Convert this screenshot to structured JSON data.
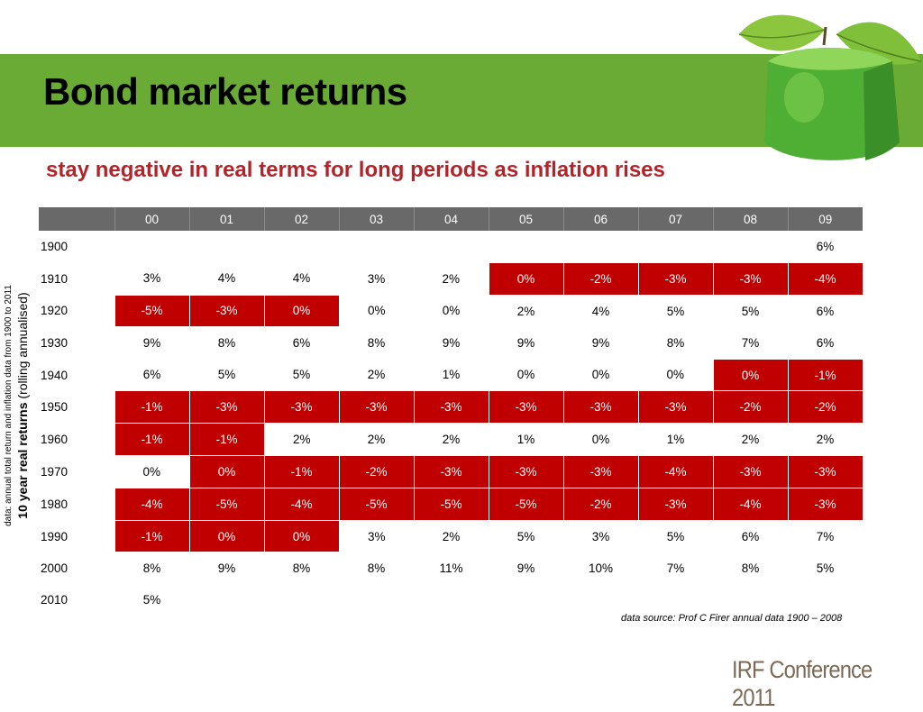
{
  "slide": {
    "title": "Bond market returns",
    "subtitle": "stay negative in real terms for long periods as inflation rises"
  },
  "side_label": {
    "note": "data: annual total return and inflation data from 1900 to 2011",
    "main_bold": "10  year real returns",
    "main_rest": "(rolling annualised)"
  },
  "table": {
    "columns": [
      "",
      "00",
      "01",
      "02",
      "03",
      "04",
      "05",
      "06",
      "07",
      "08",
      "09"
    ],
    "rows": [
      {
        "decade": "1900",
        "cells": [
          "",
          "",
          "",
          "",
          "",
          "",
          "",
          "",
          "",
          "6%"
        ]
      },
      {
        "decade": "1910",
        "cells": [
          "3%",
          "4%",
          "4%",
          "3%",
          "2%",
          "0%",
          "-2%",
          "-3%",
          "-3%",
          "-4%"
        ]
      },
      {
        "decade": "1920",
        "cells": [
          "-5%",
          "-3%",
          "0%",
          "0%",
          "0%",
          "2%",
          "4%",
          "5%",
          "5%",
          "6%"
        ]
      },
      {
        "decade": "1930",
        "cells": [
          "9%",
          "8%",
          "6%",
          "8%",
          "9%",
          "9%",
          "9%",
          "8%",
          "7%",
          "6%"
        ]
      },
      {
        "decade": "1940",
        "cells": [
          "6%",
          "5%",
          "5%",
          "2%",
          "1%",
          "0%",
          "0%",
          "0%",
          "0%",
          "-1%"
        ]
      },
      {
        "decade": "1950",
        "cells": [
          "-1%",
          "-3%",
          "-3%",
          "-3%",
          "-3%",
          "-3%",
          "-3%",
          "-3%",
          "-2%",
          "-2%"
        ]
      },
      {
        "decade": "1960",
        "cells": [
          "-1%",
          "-1%",
          "2%",
          "2%",
          "2%",
          "1%",
          "0%",
          "1%",
          "2%",
          "2%"
        ]
      },
      {
        "decade": "1970",
        "cells": [
          "0%",
          "0%",
          "-1%",
          "-2%",
          "-3%",
          "-3%",
          "-3%",
          "-4%",
          "-3%",
          "-3%"
        ]
      },
      {
        "decade": "1980",
        "cells": [
          "-4%",
          "-5%",
          "-4%",
          "-5%",
          "-5%",
          "-5%",
          "-2%",
          "-3%",
          "-4%",
          "-3%"
        ]
      },
      {
        "decade": "1990",
        "cells": [
          "-1%",
          "0%",
          "0%",
          "3%",
          "2%",
          "5%",
          "3%",
          "5%",
          "6%",
          "7%"
        ]
      },
      {
        "decade": "2000",
        "cells": [
          "8%",
          "9%",
          "8%",
          "8%",
          "11%",
          "9%",
          "10%",
          "7%",
          "8%",
          "5%"
        ]
      },
      {
        "decade": "2010",
        "cells": [
          "5%",
          "",
          "",
          "",
          "",
          "",
          "",
          "",
          "",
          ""
        ]
      }
    ],
    "negative_period_cells": [
      [
        1,
        5
      ],
      [
        1,
        6
      ],
      [
        1,
        7
      ],
      [
        1,
        8
      ],
      [
        1,
        9
      ],
      [
        2,
        0
      ],
      [
        2,
        1
      ],
      [
        2,
        2
      ],
      [
        4,
        8
      ],
      [
        4,
        9
      ],
      [
        5,
        0
      ],
      [
        5,
        1
      ],
      [
        5,
        2
      ],
      [
        5,
        3
      ],
      [
        5,
        4
      ],
      [
        5,
        5
      ],
      [
        5,
        6
      ],
      [
        5,
        7
      ],
      [
        5,
        8
      ],
      [
        5,
        9
      ],
      [
        6,
        0
      ],
      [
        6,
        1
      ],
      [
        7,
        1
      ],
      [
        7,
        2
      ],
      [
        7,
        3
      ],
      [
        7,
        4
      ],
      [
        7,
        5
      ],
      [
        7,
        6
      ],
      [
        7,
        7
      ],
      [
        7,
        8
      ],
      [
        7,
        9
      ],
      [
        8,
        0
      ],
      [
        8,
        1
      ],
      [
        8,
        2
      ],
      [
        8,
        3
      ],
      [
        8,
        4
      ],
      [
        8,
        5
      ],
      [
        8,
        6
      ],
      [
        8,
        7
      ],
      [
        8,
        8
      ],
      [
        8,
        9
      ],
      [
        9,
        0
      ],
      [
        9,
        1
      ],
      [
        9,
        2
      ]
    ],
    "highlight_color": "#c00000",
    "header_color": "#696969"
  },
  "footer": {
    "source": "data source: Prof C Firer annual data 1900 – 2008",
    "conference": "IRF Conference 2011"
  },
  "colors": {
    "band": "#6aab35",
    "subtitle": "#b2242a"
  },
  "decor": {
    "apple_icon": "green-cube-apple-icon"
  }
}
